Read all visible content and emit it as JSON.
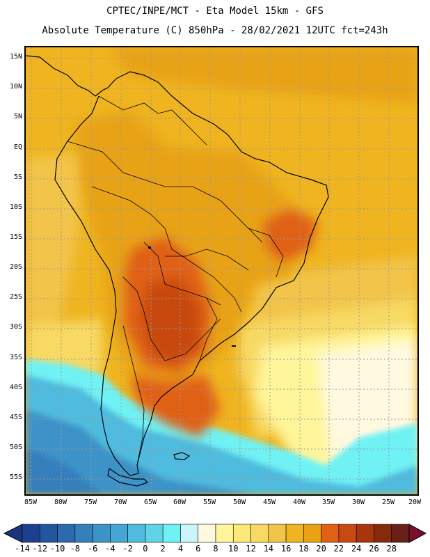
{
  "header": {
    "line1": "CPTEC/INPE/MCT -  Eta Model 15km - GFS",
    "line2": "Absolute Temperature (C) 850hPa - 28/02/2021 12UTC fct=243h"
  },
  "axes": {
    "lat_labels": [
      "15N",
      "10N",
      "5N",
      "EQ",
      "5S",
      "10S",
      "15S",
      "20S",
      "25S",
      "30S",
      "35S",
      "40S",
      "45S",
      "50S",
      "55S"
    ],
    "lon_labels": [
      "85W",
      "80W",
      "75W",
      "70W",
      "65W",
      "60W",
      "55W",
      "50W",
      "45W",
      "40W",
      "35W",
      "30W",
      "25W",
      "20W"
    ]
  },
  "colorbar": {
    "labels": [
      "-14",
      "-12",
      "-10",
      "-8",
      "-6",
      "-4",
      "-2",
      "0",
      "2",
      "4",
      "6",
      "8",
      "10",
      "12",
      "14",
      "16",
      "18",
      "20",
      "22",
      "24",
      "26",
      "28"
    ],
    "colors": [
      "#1e3f8f",
      "#24559f",
      "#2b6aae",
      "#347fbc",
      "#3c93c8",
      "#45a6d3",
      "#50bbde",
      "#5fd4e8",
      "#6ff2f4",
      "#ccf4fb",
      "#fff9e0",
      "#fff59a",
      "#fde97a",
      "#f7d964",
      "#f2c44a",
      "#efb41f",
      "#e8a213",
      "#e06015",
      "#c84a10",
      "#a8350e",
      "#862a0c",
      "#6a1f17"
    ],
    "under_color": "#1a3480",
    "over_color": "#7a0f2c"
  },
  "map": {
    "fill_colors": {
      "ocean_warm": "#efb41f",
      "ocean_mid": "#f2c44a",
      "ocean_cool": "#f7d964",
      "ocean_pale": "#fff59a",
      "ocean_cream": "#fff9e0",
      "sea_cyan": "#6ff2f4",
      "sea_light": "#50bbde",
      "sea_mid": "#3c93c8",
      "sea_deep": "#347fbc",
      "land_warm": "#e8a213",
      "land_hot": "#e06015",
      "land_hotter": "#c84a10"
    }
  }
}
